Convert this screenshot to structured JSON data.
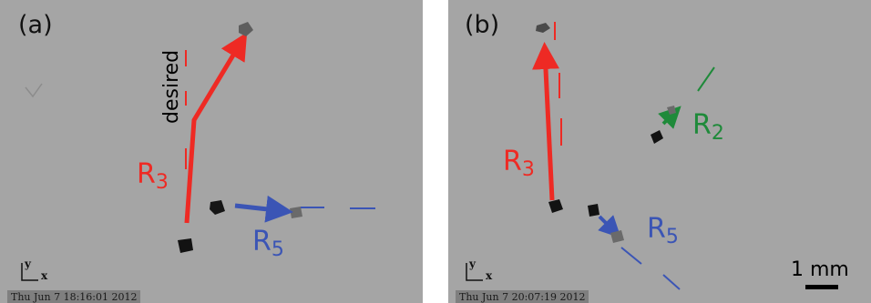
{
  "panels": {
    "a": {
      "label": "(a)",
      "desired_label": "desired",
      "robot_labels": [
        {
          "base": "R",
          "sub": "3",
          "color": "#ee2a24"
        },
        {
          "base": "R",
          "sub": "5",
          "color": "#3b55b5"
        }
      ],
      "axis_y": "y",
      "axis_x": "x",
      "timestamp": "Thu Jun  7 18:16:01 2012"
    },
    "b": {
      "label": "(b)",
      "robot_labels": [
        {
          "base": "R",
          "sub": "3",
          "color": "#ee2a24"
        },
        {
          "base": "R",
          "sub": "2",
          "color": "#1f8a3a"
        },
        {
          "base": "R",
          "sub": "5",
          "color": "#3b55b5"
        }
      ],
      "axis_y": "y",
      "axis_x": "x",
      "timestamp": "Thu Jun  7 20:07:19 2012",
      "scale_bar": "1 mm"
    }
  },
  "colors": {
    "background": "#a5a5a5",
    "r3": "#ee2a24",
    "r5": "#3b55b5",
    "r2": "#1f8a3a"
  }
}
